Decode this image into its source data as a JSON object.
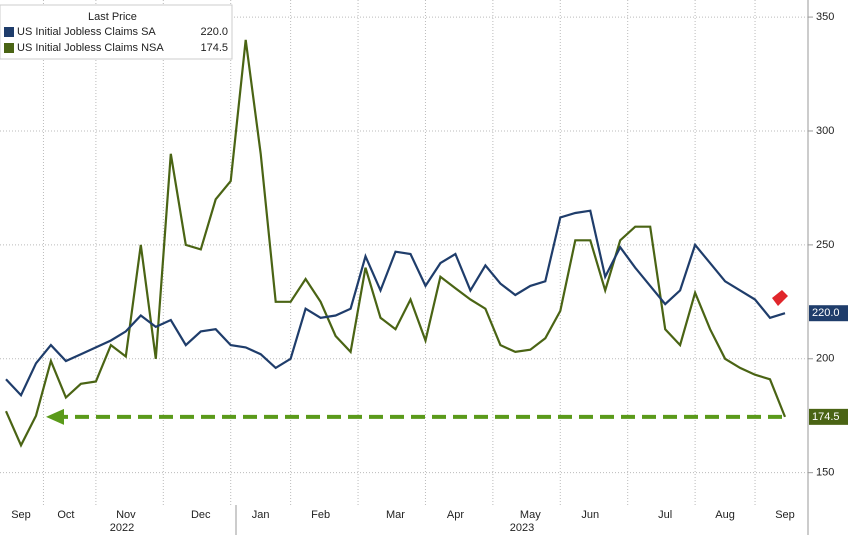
{
  "chart_data": {
    "type": "line",
    "legend_title": "Last Price",
    "categories": [
      null,
      "Sep",
      null,
      null,
      "Oct",
      null,
      null,
      null,
      "Nov",
      null,
      null,
      null,
      null,
      "Dec",
      null,
      null,
      null,
      "Jan",
      null,
      null,
      null,
      "Feb",
      null,
      null,
      null,
      null,
      "Mar",
      null,
      null,
      null,
      "Apr",
      null,
      null,
      null,
      null,
      "May",
      null,
      null,
      null,
      "Jun",
      null,
      null,
      null,
      null,
      "Jul",
      null,
      null,
      null,
      "Aug",
      null,
      null,
      null,
      "Sep"
    ],
    "year_labels": [
      "2022",
      "2023"
    ],
    "series": [
      {
        "name": "US Initial Jobless Claims SA",
        "color": "#1f3d6b",
        "last_label": "220.0",
        "values": [
          191,
          184,
          198,
          206,
          199,
          202,
          205,
          208,
          212,
          219,
          214,
          217,
          206,
          212,
          213,
          206,
          205,
          202,
          196,
          200,
          222,
          218,
          219,
          222,
          245,
          230,
          247,
          246,
          232,
          242,
          246,
          230,
          241,
          233,
          228,
          232,
          234,
          262,
          264,
          265,
          236,
          249,
          240,
          232,
          224,
          230,
          250,
          242,
          234,
          230,
          226,
          218,
          220
        ]
      },
      {
        "name": "US Initial Jobless Claims NSA",
        "color": "#4a6414",
        "last_label": "174.5",
        "values": [
          177,
          162,
          175,
          199,
          183,
          189,
          190,
          206,
          201,
          250,
          200,
          290,
          250,
          248,
          270,
          278,
          340,
          290,
          225,
          225,
          235,
          225,
          210,
          203,
          240,
          218,
          213,
          226,
          208,
          236,
          231,
          226,
          222,
          206,
          203,
          204,
          209,
          221,
          252,
          252,
          230,
          252,
          258,
          258,
          213,
          206,
          229,
          213,
          200,
          196,
          193,
          191,
          174.5
        ]
      }
    ],
    "ylim": [
      138,
      357.5
    ],
    "yticks": [
      150,
      200,
      250,
      300,
      350
    ],
    "grid": true
  }
}
